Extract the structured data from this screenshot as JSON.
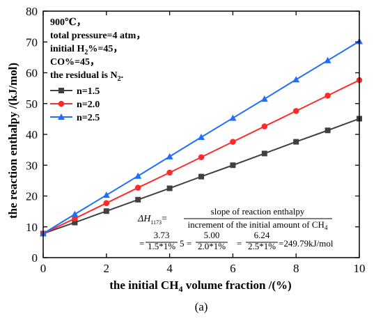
{
  "chart_data": {
    "type": "line",
    "xlabel": {
      "before": "the initial CH",
      "sub": "4",
      "after": " volume fraction /(%)"
    },
    "ylabel": "the reaction enthalpy /(kJ/mol)",
    "xlim": [
      0,
      10
    ],
    "ylim": [
      0,
      80
    ],
    "xticks": [
      "0",
      "2",
      "4",
      "6",
      "8",
      "10"
    ],
    "yticks": [
      "0",
      "10",
      "20",
      "30",
      "40",
      "50",
      "60",
      "70",
      "80"
    ],
    "x": [
      0,
      1,
      2,
      3,
      4,
      5,
      6,
      7,
      8,
      9,
      10
    ],
    "series": [
      {
        "name": "n=1.5",
        "color": "#404040",
        "marker": "square",
        "values": [
          7.8,
          11.4,
          15.1,
          18.8,
          22.5,
          26.3,
          30.0,
          33.8,
          37.6,
          41.3,
          45.1
        ]
      },
      {
        "name": "n=2.0",
        "color": "#ff2a2a",
        "marker": "circle",
        "values": [
          7.8,
          12.7,
          17.7,
          22.7,
          27.6,
          32.6,
          37.6,
          42.6,
          47.6,
          52.6,
          57.6
        ]
      },
      {
        "name": "n=2.5",
        "color": "#1f6fff",
        "marker": "triangle",
        "values": [
          7.8,
          14.1,
          20.3,
          26.5,
          32.8,
          39.1,
          45.3,
          51.5,
          57.8,
          64.0,
          70.2
        ]
      }
    ],
    "legend_position": "top-left",
    "conditions": [
      {
        "parts": [
          {
            "t": "900℃，"
          }
        ]
      },
      {
        "parts": [
          {
            "t": "total pressure=4 atm，"
          }
        ]
      },
      {
        "parts": [
          {
            "t": "initial H"
          },
          {
            "t": "2",
            "sub": true
          },
          {
            "t": "%=45，"
          }
        ]
      },
      {
        "parts": [
          {
            "t": "CO%=45，"
          }
        ]
      },
      {
        "parts": [
          {
            "t": "the residual is N"
          },
          {
            "t": "2",
            "sub": true
          },
          {
            "t": "."
          }
        ]
      }
    ],
    "equation": {
      "lhs": "ΔH",
      "lhs_sub": "1173",
      "equals": "=",
      "numerator": "slope of  reaction enthalpy",
      "denominator_before": "increment of the initial amount of CH",
      "denominator_sub": "4",
      "terms": [
        {
          "num": "3.73",
          "den": "1.5*1%"
        },
        {
          "num": "5.00",
          "den": "2.0*1%"
        },
        {
          "num": "6.24",
          "den": "2.5*1%"
        }
      ],
      "stray": "5",
      "result": "=249.79kJ/mol"
    },
    "caption": "(a)"
  }
}
